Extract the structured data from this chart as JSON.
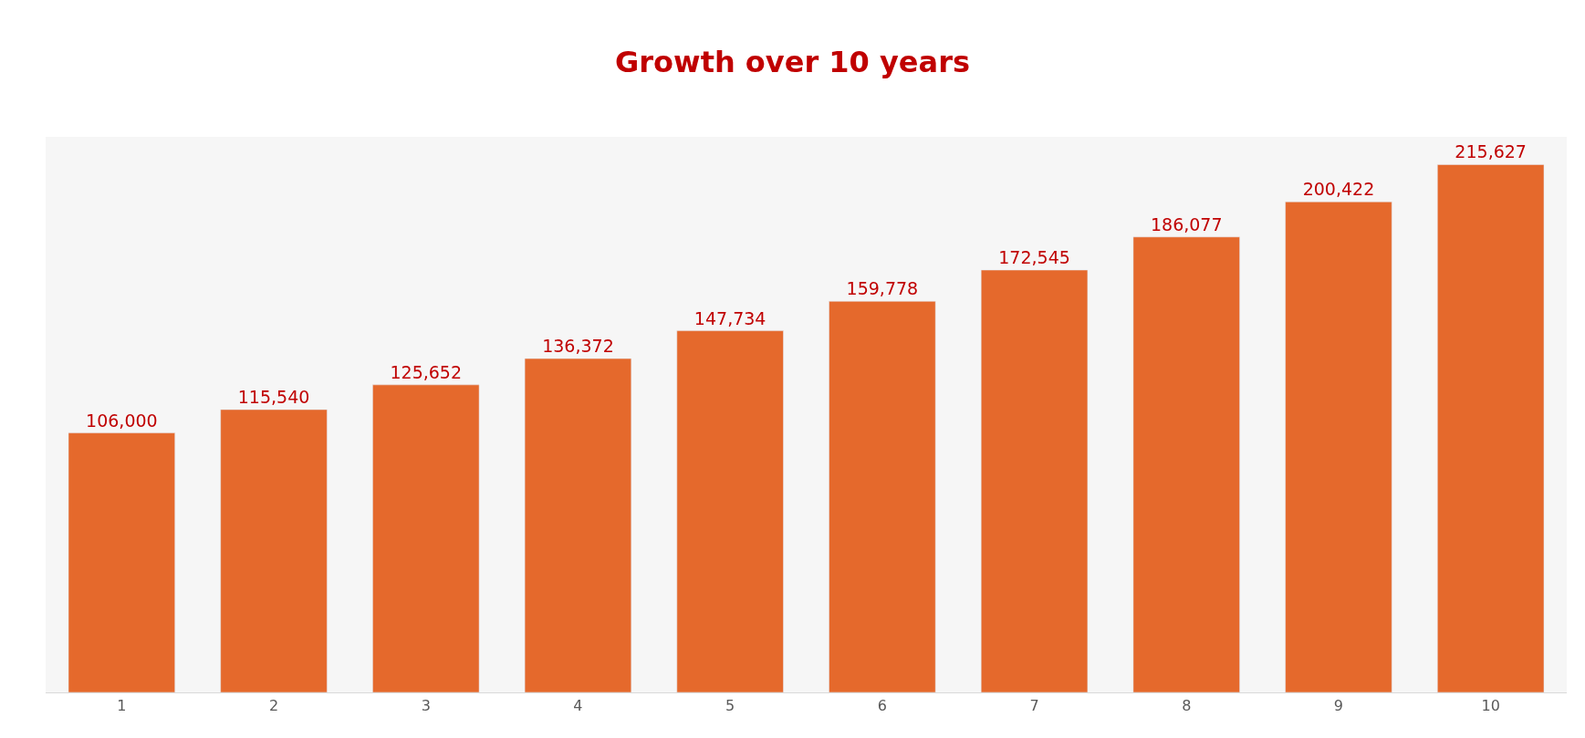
{
  "chart_data": {
    "type": "bar",
    "title": "Growth over 10 years",
    "categories": [
      "1",
      "2",
      "3",
      "4",
      "5",
      "6",
      "7",
      "8",
      "9",
      "10"
    ],
    "values": [
      106000,
      115540,
      125652,
      136372,
      147734,
      159778,
      172545,
      186077,
      200422,
      215627
    ],
    "value_labels": [
      "106,000",
      "115,540",
      "125,652",
      "136,372",
      "147,734",
      "159,778",
      "172,545",
      "186,077",
      "200,422",
      "215,627"
    ],
    "color": "#e5692c",
    "grid": false,
    "legend": false
  }
}
